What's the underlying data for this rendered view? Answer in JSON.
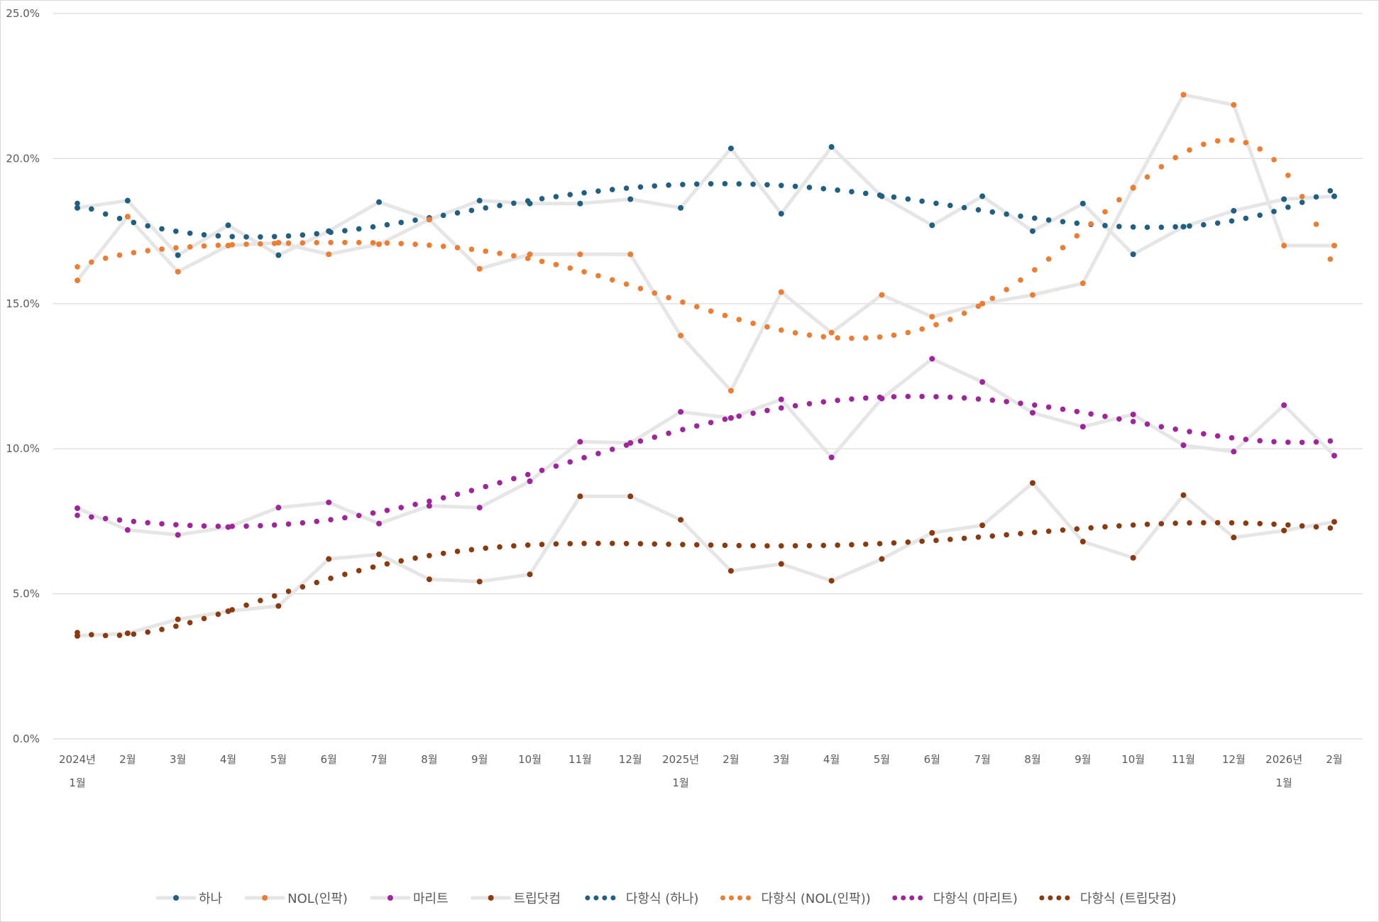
{
  "chart_data": {
    "type": "line",
    "title": "",
    "xlabel": "",
    "ylabel": "",
    "ylim": [
      0,
      25
    ],
    "y_ticks": [
      "0.0%",
      "5.0%",
      "10.0%",
      "15.0%",
      "20.0%",
      "25.0%"
    ],
    "y_tick_values": [
      0,
      5,
      10,
      15,
      20,
      25
    ],
    "grid": true,
    "legend_position": "bottom",
    "categories": [
      [
        "2024년",
        "1월"
      ],
      [
        "2월"
      ],
      [
        "3월"
      ],
      [
        "4월"
      ],
      [
        "5월"
      ],
      [
        "6월"
      ],
      [
        "7월"
      ],
      [
        "8월"
      ],
      [
        "9월"
      ],
      [
        "10월"
      ],
      [
        "11월"
      ],
      [
        "12월"
      ],
      [
        "2025년",
        "1월"
      ],
      [
        "2월"
      ],
      [
        "3월"
      ],
      [
        "4월"
      ],
      [
        "5월"
      ],
      [
        "6월"
      ],
      [
        "7월"
      ],
      [
        "8월"
      ],
      [
        "9월"
      ],
      [
        "10월"
      ],
      [
        "11월"
      ],
      [
        "12월"
      ],
      [
        "2026년",
        "1월"
      ],
      [
        "2월"
      ]
    ],
    "series": [
      {
        "name": "하나",
        "color": "#1f5f82",
        "values": [
          18.3,
          18.55,
          16.67,
          17.7,
          16.67,
          17.5,
          18.5,
          17.9,
          18.55,
          18.45,
          18.45,
          18.6,
          18.3,
          20.35,
          18.1,
          20.4,
          18.7,
          17.7,
          18.7,
          17.5,
          18.45,
          16.7,
          17.65,
          18.2,
          18.6,
          18.7
        ]
      },
      {
        "name": "NOL(인팍)",
        "color": "#ed7d31",
        "values": [
          15.8,
          18.0,
          16.1,
          17.0,
          17.1,
          16.7,
          17.05,
          17.9,
          16.2,
          16.7,
          16.7,
          16.7,
          13.9,
          12.0,
          15.4,
          14.0,
          15.3,
          14.55,
          15.0,
          15.3,
          15.7,
          19.0,
          22.2,
          21.85,
          17.0,
          17.0
        ]
      },
      {
        "name": "마리트",
        "color": "#a0259c",
        "values": [
          7.95,
          7.2,
          7.03,
          7.3,
          7.97,
          8.15,
          7.42,
          8.03,
          7.97,
          8.88,
          10.24,
          10.2,
          11.27,
          11.06,
          11.7,
          9.7,
          11.73,
          13.1,
          12.3,
          11.24,
          10.76,
          11.18,
          10.12,
          9.9,
          11.5,
          9.76
        ]
      },
      {
        "name": "트립닷컴",
        "color": "#8b3a0f",
        "values": [
          3.55,
          3.64,
          4.12,
          4.4,
          4.58,
          6.2,
          6.36,
          5.5,
          5.42,
          5.67,
          8.36,
          8.36,
          7.55,
          5.79,
          6.03,
          5.45,
          6.2,
          7.1,
          7.36,
          8.82,
          6.8,
          6.24,
          8.4,
          6.94,
          7.18,
          7.48
        ]
      }
    ],
    "trendlines": [
      {
        "name": "다항식 (하나)",
        "of": 0,
        "type": "polynomial",
        "order": 6
      },
      {
        "name": "다항식 (NOL(인팍))",
        "of": 1,
        "type": "polynomial",
        "order": 6
      },
      {
        "name": "다항식 (마리트)",
        "of": 2,
        "type": "polynomial",
        "order": 6
      },
      {
        "name": "다항식 (트립닷컴)",
        "of": 3,
        "type": "polynomial",
        "order": 6
      }
    ],
    "line_color": "#e6e6e6",
    "grid_color": "#d9d9d9"
  }
}
